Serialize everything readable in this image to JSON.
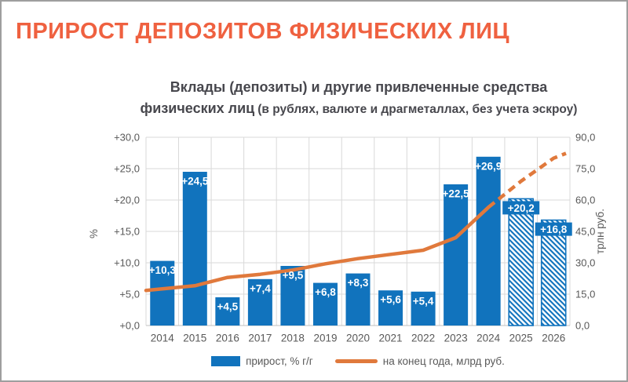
{
  "page": {
    "title": "ПРИРОСТ ДЕПОЗИТОВ ФИЗИЧЕСКИХ ЛИЦ"
  },
  "chart": {
    "title_line1": "Вклады (депозиты) и другие привлеченные средства",
    "title_line2_bold": "физических лиц",
    "title_line2_paren": "(в рублях, валюте и драгметаллах, без учета эскроу)"
  },
  "legend": {
    "bars": "прирост, % г/г",
    "line": "на конец года, млрд руб."
  },
  "colors": {
    "page_title": "#EF6140",
    "chart_title": "#47474D",
    "bar": "#1173BD",
    "line": "#E0793C",
    "axis_text": "#595959",
    "grid": "#D9D9D9",
    "axis_line": "#BFBFBF",
    "bar_label": "#FFFFFF",
    "border": "#9E9E9E"
  },
  "chart_data": {
    "type": "bar",
    "subtype": "combo bar + line, dual axis; 2025-2026 are forecast (hatched bars, dashed line)",
    "categories": [
      "2014",
      "2015",
      "2016",
      "2017",
      "2018",
      "2019",
      "2020",
      "2021",
      "2022",
      "2023",
      "2024",
      "2025",
      "2026"
    ],
    "series": [
      {
        "name": "прирост, % г/г",
        "type": "bar",
        "axis": "left",
        "values": [
          10.3,
          24.5,
          4.5,
          7.4,
          9.5,
          6.8,
          8.3,
          5.6,
          5.4,
          22.5,
          26.9,
          20.2,
          16.8
        ],
        "labels": [
          "+10,3",
          "+24,5",
          "+4,5",
          "+7,4",
          "+9,5",
          "+6,8",
          "+8,3",
          "+5,6",
          "+5,4",
          "+22,5",
          "+26,9",
          "+20,2",
          "+16,8"
        ]
      },
      {
        "name": "на конец года, млрд руб.",
        "type": "line",
        "axis": "right",
        "values": [
          17.5,
          19.0,
          23.0,
          24.5,
          26.5,
          29.5,
          32.0,
          34.0,
          36.0,
          42.0,
          56.5,
          69.0,
          80.0
        ]
      }
    ],
    "forecast_categories": [
      "2025",
      "2026"
    ],
    "left_axis": {
      "title": "%",
      "min": 0,
      "max": 30,
      "step": 5,
      "tick_labels": [
        "+0,0",
        "+5,0",
        "+10,0",
        "+15,0",
        "+20,0",
        "+25,0",
        "+30,0"
      ]
    },
    "right_axis": {
      "title": "трлн руб.",
      "min": 0,
      "max": 90,
      "step": 15,
      "tick_labels": [
        "0,0",
        "15,0",
        "30,0",
        "45,0",
        "60,0",
        "75,0",
        "90,0"
      ]
    },
    "grid": true,
    "legend_position": "bottom"
  }
}
